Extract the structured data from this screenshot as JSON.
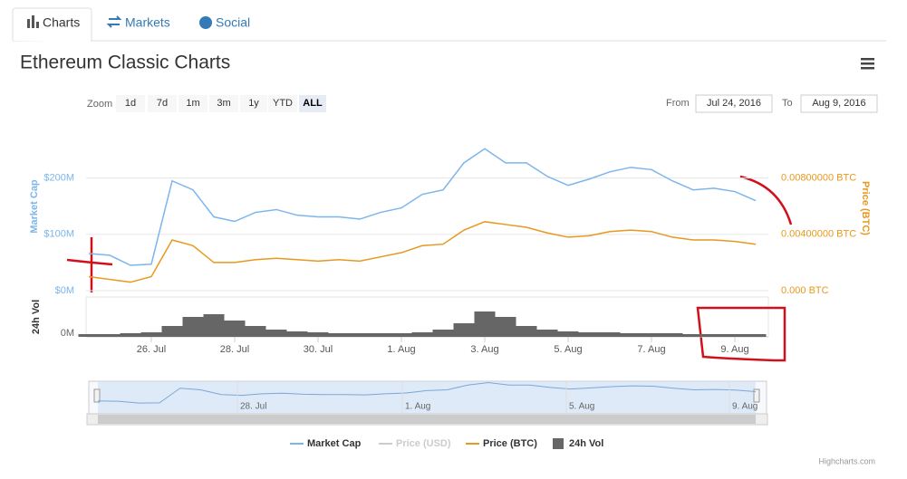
{
  "tabs": [
    "Charts",
    "Markets",
    "Social"
  ],
  "heading": "Ethereum Classic Charts",
  "zoom": {
    "label": "Zoom",
    "buttons": [
      "1d",
      "7d",
      "1m",
      "3m",
      "1y",
      "YTD",
      "ALL"
    ],
    "active": 6
  },
  "range": {
    "from_label": "From",
    "from": "Jul 24, 2016",
    "to_label": "To",
    "to": "Aug 9, 2016"
  },
  "credit": "Highcharts.com",
  "chart_data": {
    "type": "line",
    "categories": [
      null,
      null,
      null,
      "26. Jul",
      null,
      null,
      null,
      "28. Jul",
      null,
      null,
      null,
      "30. Jul",
      null,
      null,
      null,
      "1. Aug",
      null,
      null,
      null,
      "3. Aug",
      null,
      null,
      null,
      "5. Aug",
      null,
      null,
      null,
      "7. Aug",
      null,
      null,
      null,
      "9. Aug",
      null
    ],
    "ylabel": "Market Cap",
    "y2label": "Price (BTC)",
    "vol_label": "24h Vol",
    "ylim": [
      0,
      275000000
    ],
    "yticks": [
      {
        "value": 0,
        "label": "$0M"
      },
      {
        "value": 100000000,
        "label": "$100M"
      },
      {
        "value": 200000000,
        "label": "$200M"
      }
    ],
    "y2lim": [
      0,
      0.011
    ],
    "y2ticks": [
      {
        "value": 0,
        "label": "0.000 BTC"
      },
      {
        "value": 0.004,
        "label": "0.00400000 BTC"
      },
      {
        "value": 0.008,
        "label": "0.00800000 BTC"
      }
    ],
    "vol_ylim": [
      0,
      44000000
    ],
    "vol_yticks": [
      {
        "value": 0,
        "label": "0M"
      }
    ],
    "series": [
      {
        "name": "Market Cap",
        "color": "#7cb5ec",
        "values": [
          66000000,
          63000000,
          45000000,
          47000000,
          195000000,
          179000000,
          131000000,
          123000000,
          139000000,
          144000000,
          134000000,
          131000000,
          131000000,
          127000000,
          139000000,
          147000000,
          171000000,
          179000000,
          227000000,
          252000000,
          227000000,
          227000000,
          203000000,
          187000000,
          198000000,
          211000000,
          219000000,
          215000000,
          195000000,
          179000000,
          182000000,
          176000000,
          160000000
        ]
      },
      {
        "name": "Price (USD)",
        "color": "#cccccc",
        "visible": false
      },
      {
        "name": "Price (BTC)",
        "color": "#e8981e",
        "axis": "y2",
        "values": [
          0.001,
          0.0008,
          0.0006,
          0.001,
          0.0036,
          0.0032,
          0.002,
          0.002,
          0.0022,
          0.0023,
          0.0022,
          0.0021,
          0.0022,
          0.0021,
          0.0024,
          0.0027,
          0.0032,
          0.0033,
          0.0043,
          0.0049,
          0.0047,
          0.0045,
          0.0041,
          0.0038,
          0.0039,
          0.0042,
          0.0043,
          0.0042,
          0.0038,
          0.0036,
          0.0036,
          0.0035,
          0.0033
        ]
      },
      {
        "name": "24h Vol",
        "color": "#666666",
        "axis": "vol",
        "values": [
          3000000,
          3000000,
          4000000,
          5000000,
          12000000,
          22000000,
          25000000,
          18000000,
          12000000,
          8000000,
          6000000,
          5000000,
          4000000,
          4000000,
          4000000,
          4000000,
          5000000,
          8000000,
          15000000,
          28000000,
          22000000,
          12000000,
          8000000,
          6000000,
          5000000,
          5000000,
          4000000,
          4000000,
          4000000,
          3000000,
          3000000,
          3000000,
          3000000
        ]
      }
    ],
    "navigator": {
      "labels": [
        "28. Jul",
        "1. Aug",
        "5. Aug",
        "9. Aug"
      ]
    }
  }
}
